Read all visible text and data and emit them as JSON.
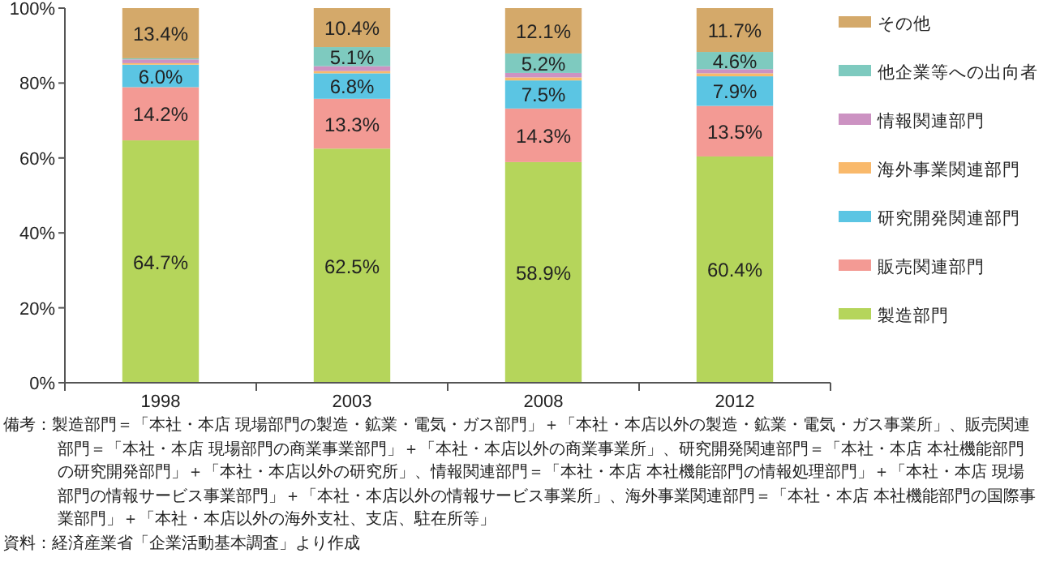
{
  "chart_data": {
    "type": "bar",
    "stacked": true,
    "categories": [
      "1998",
      "2003",
      "2008",
      "2012"
    ],
    "series": [
      {
        "name": "製造部門",
        "color": "#b5d55b",
        "values": [
          64.7,
          62.5,
          58.9,
          60.4
        ],
        "value_labels": [
          "64.7%",
          "62.5%",
          "58.9%",
          "60.4%"
        ]
      },
      {
        "name": "販売関連部門",
        "color": "#f39a94",
        "values": [
          14.2,
          13.3,
          14.3,
          13.5
        ],
        "value_labels": [
          "14.2%",
          "13.3%",
          "14.3%",
          "13.5%"
        ]
      },
      {
        "name": "研究開発関連部門",
        "color": "#5bc5e3",
        "values": [
          6.0,
          6.8,
          7.5,
          7.9
        ],
        "value_labels": [
          "6.0%",
          "6.8%",
          "7.5%",
          "7.9%"
        ]
      },
      {
        "name": "海外事業関連部門",
        "color": "#f9b96b",
        "values": [
          0.4,
          0.6,
          0.8,
          0.8
        ]
      },
      {
        "name": "情報関連部門",
        "color": "#cc92c2",
        "values": [
          1.0,
          1.3,
          1.2,
          1.1
        ]
      },
      {
        "name": "他企業等への出向者",
        "color": "#7ecabf",
        "values": [
          0.3,
          5.1,
          5.2,
          4.6
        ],
        "value_labels": [
          null,
          "5.1%",
          "5.2%",
          "4.6%"
        ]
      },
      {
        "name": "その他",
        "color": "#d4a96a",
        "values": [
          13.4,
          10.4,
          12.1,
          11.7
        ],
        "value_labels": [
          "13.4%",
          "10.4%",
          "12.1%",
          "11.7%"
        ]
      }
    ],
    "ylim": [
      0,
      100
    ],
    "yticks": [
      {
        "value": 0,
        "label": "0%"
      },
      {
        "value": 20,
        "label": "20%"
      },
      {
        "value": 40,
        "label": "40%"
      },
      {
        "value": 60,
        "label": "60%"
      },
      {
        "value": 80,
        "label": "80%"
      },
      {
        "value": 100,
        "label": "100%"
      }
    ],
    "legend": "right",
    "annotations": [
      "備考：製造部門＝「本社・本店 現場部門の製造・鉱業・電気・ガス部門」＋「本社・本店以外の製造・鉱業・電気・ガス事業所」、販売関連部門＝「本社・本店 現場部門の商業事業部門」＋「本社・本店以外の商業事業所」、研究開発関連部門＝「本社・本店 本社機能部門の研究開発部門」＋「本社・本店以外の研究所」、情報関連部門＝「本社・本店 本社機能部門の情報処理部門」＋「本社・本店 現場部門の情報サービス事業部門」＋「本社・本店以外の情報サービス事業所」、海外事業関連部門＝「本社・本店 本社機能部門の国際事業部門」＋「本社・本店以外の海外支社、支店、駐在所等」",
      "資料：経済産業省「企業活動基本調査」より作成"
    ]
  }
}
